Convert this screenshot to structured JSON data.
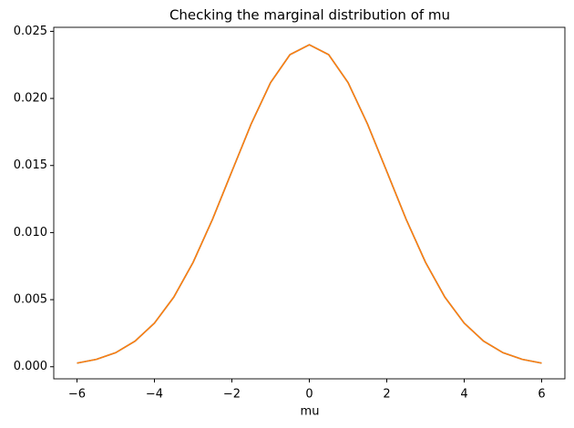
{
  "chart_data": {
    "type": "line",
    "title": "Checking the marginal distribution of mu",
    "xlabel": "mu",
    "x": [
      -6,
      -5.5,
      -5,
      -4.5,
      -4,
      -3.5,
      -3,
      -2.5,
      -2,
      -1.5,
      -1,
      -0.5,
      0,
      0.5,
      1,
      1.5,
      2,
      2.5,
      3,
      3.5,
      4,
      4.5,
      5,
      5.5,
      6
    ],
    "series": [
      {
        "color": "#1f77b4",
        "values": [
          0.00027,
          0.00055,
          0.00105,
          0.00191,
          0.00325,
          0.00519,
          0.00779,
          0.01099,
          0.01456,
          0.01811,
          0.02118,
          0.02326,
          0.024,
          0.02326,
          0.02118,
          0.01811,
          0.01456,
          0.01099,
          0.00779,
          0.00519,
          0.00325,
          0.00191,
          0.00105,
          0.00055,
          0.00027
        ]
      },
      {
        "color": "#ff7f0e",
        "values": [
          0.00027,
          0.00055,
          0.00105,
          0.00191,
          0.00325,
          0.00519,
          0.00779,
          0.01099,
          0.01456,
          0.01811,
          0.02118,
          0.02326,
          0.024,
          0.02326,
          0.02118,
          0.01811,
          0.01456,
          0.01099,
          0.00779,
          0.00519,
          0.00325,
          0.00191,
          0.00105,
          0.00055,
          0.00027
        ]
      }
    ],
    "xlim": [
      -6.6,
      6.6
    ],
    "ylim": [
      -0.0009,
      0.0253
    ],
    "xticks": [
      {
        "value": -6,
        "label": "−6"
      },
      {
        "value": -4,
        "label": "−4"
      },
      {
        "value": -2,
        "label": "−2"
      },
      0,
      2,
      4,
      6
    ],
    "yticks": [
      {
        "value": 0,
        "label": "0.000"
      },
      {
        "value": 0.005,
        "label": "0.005"
      },
      {
        "value": 0.01,
        "label": "0.010"
      },
      {
        "value": 0.015,
        "label": "0.015"
      },
      {
        "value": 0.02,
        "label": "0.020"
      },
      {
        "value": 0.025,
        "label": "0.025"
      }
    ],
    "grid": false
  }
}
